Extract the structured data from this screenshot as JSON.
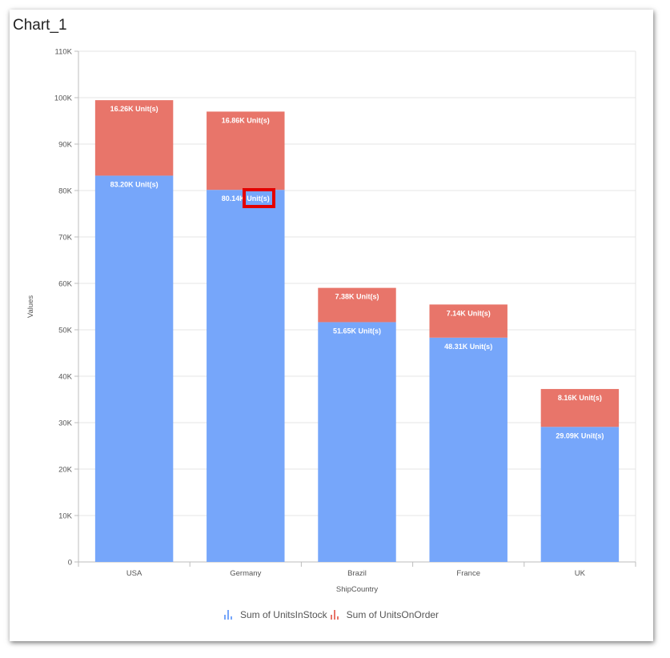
{
  "title": "Chart_1",
  "chart_data": {
    "type": "bar",
    "stacked": true,
    "categories": [
      "USA",
      "Germany",
      "Brazil",
      "France",
      "UK"
    ],
    "series": [
      {
        "name": "Sum of UnitsInStock",
        "color": "#76a6fa",
        "values": [
          83200,
          80140,
          51650,
          48310,
          29090
        ],
        "labels": [
          "83.20K Unit(s)",
          "80.14K Unit(s)",
          "51.65K Unit(s)",
          "48.31K Unit(s)",
          "29.09K Unit(s)"
        ]
      },
      {
        "name": "Sum of UnitsOnOrder",
        "color": "#e8756a",
        "values": [
          16260,
          16860,
          7380,
          7140,
          8160
        ],
        "labels": [
          "16.26K Unit(s)",
          "16.86K Unit(s)",
          "7.38K Unit(s)",
          "7.14K Unit(s)",
          "8.16K Unit(s)"
        ]
      }
    ],
    "yticks": [
      0,
      10000,
      20000,
      30000,
      40000,
      50000,
      60000,
      70000,
      80000,
      90000,
      100000,
      110000
    ],
    "ytick_labels": [
      "0",
      "10K",
      "20K",
      "30K",
      "40K",
      "50K",
      "60K",
      "70K",
      "80K",
      "90K",
      "100K",
      "110K"
    ],
    "ylim": [
      0,
      110000
    ],
    "xlabel": "ShipCountry",
    "ylabel": "Values",
    "grid": true,
    "legend": "bottom"
  }
}
